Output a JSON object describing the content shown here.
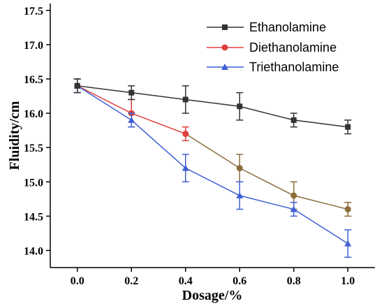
{
  "chart_data": {
    "type": "line",
    "x": [
      0.0,
      0.2,
      0.4,
      0.6,
      0.8,
      1.0
    ],
    "x_tick_labels": [
      "0.0",
      "0.2",
      "0.4",
      "0.6",
      "0.8",
      "1.0"
    ],
    "y_ticks": [
      14.0,
      14.5,
      15.0,
      15.5,
      16.0,
      16.5,
      17.0,
      17.5
    ],
    "y_tick_labels": [
      "14.0",
      "14.5",
      "15.0",
      "15.5",
      "16.0",
      "16.5",
      "17.0",
      "17.5"
    ],
    "xlim": [
      -0.1,
      1.1
    ],
    "ylim": [
      13.75,
      17.6
    ],
    "xlabel": "Dosage/%",
    "ylabel": "Fluidity/cm",
    "grid": false,
    "legend_position": "top-right",
    "series": [
      {
        "name": "Ethanolamine",
        "marker": "square",
        "color": "#333333",
        "values": [
          16.4,
          16.3,
          16.2,
          16.1,
          15.9,
          15.8
        ],
        "errors": [
          0.1,
          0.1,
          0.2,
          0.2,
          0.1,
          0.1
        ]
      },
      {
        "name": "Diethanolamine",
        "marker": "circle",
        "color": "#e0403e",
        "alt_color": "#8b6d3a",
        "values": [
          16.4,
          16.0,
          15.7,
          15.2,
          14.8,
          14.6
        ],
        "errors": [
          0.1,
          0.2,
          0.1,
          0.2,
          0.2,
          0.1
        ]
      },
      {
        "name": "Triethanolamine",
        "marker": "triangle",
        "color": "#3f5fd4",
        "values": [
          16.4,
          15.9,
          15.2,
          14.8,
          14.6,
          14.1
        ],
        "errors": [
          0.1,
          0.1,
          0.2,
          0.2,
          0.1,
          0.2
        ]
      }
    ]
  }
}
